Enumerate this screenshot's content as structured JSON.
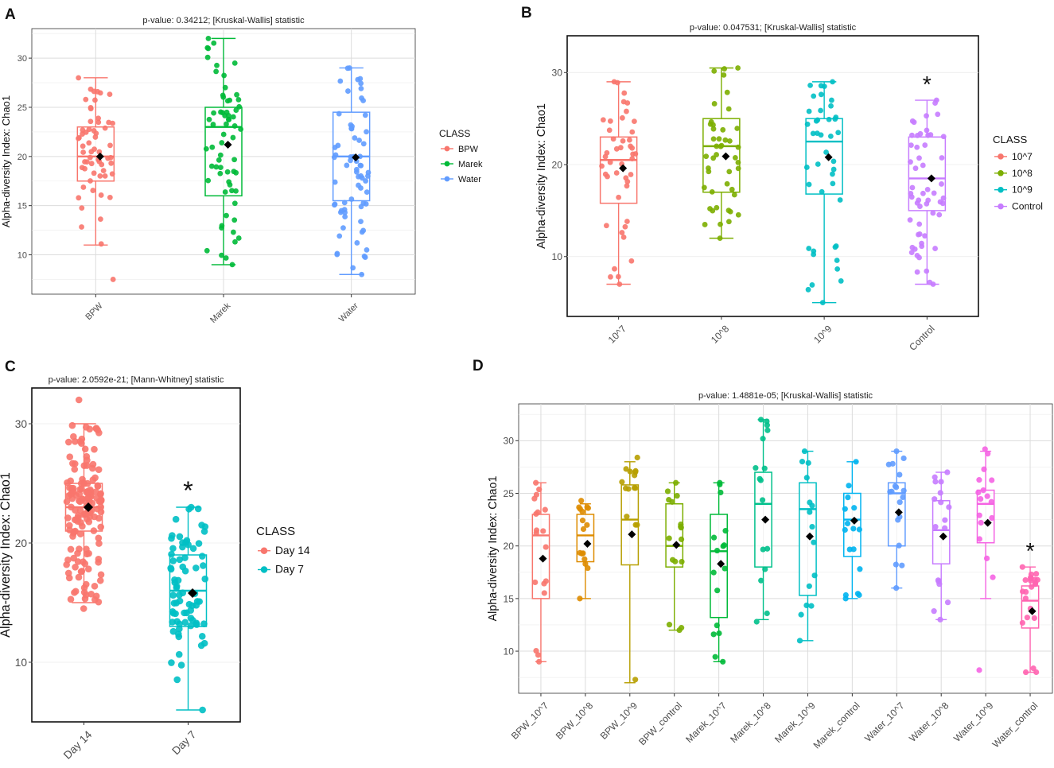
{
  "panels": [
    {
      "id": "A",
      "label": "A",
      "title": "p-value: 0.34212; [Kruskal-Wallis] statistic",
      "ylabel": "Alpha-diversity Index: Chao1",
      "ylim": [
        6,
        33
      ],
      "yticks": [
        10,
        15,
        20,
        25,
        30
      ],
      "legend_title": "CLASS",
      "font_scale": 1,
      "groups": [
        {
          "name": "BPW",
          "color": "#F8766D",
          "q1": 17.5,
          "median": 20,
          "q3": 23,
          "lw": 11,
          "uw": 28,
          "mean": 20,
          "min": 7.5,
          "max": 28,
          "n": 60
        },
        {
          "name": "Marek",
          "color": "#00BA38",
          "q1": 16,
          "median": 23,
          "q3": 25,
          "lw": 9,
          "uw": 32,
          "mean": 21.2,
          "min": 9,
          "max": 32,
          "n": 65
        },
        {
          "name": "Water",
          "color": "#619CFF",
          "q1": 15.5,
          "median": 20,
          "q3": 24.5,
          "lw": 8,
          "uw": 29,
          "mean": 19.9,
          "min": 8,
          "max": 29,
          "n": 70
        }
      ],
      "annotations": []
    },
    {
      "id": "B",
      "label": "B",
      "title": "p-value: 0.047531; [Kruskal-Wallis] statistic",
      "ylabel": "Alpha-diversity Index: Chao1",
      "ylim": [
        3.5,
        34
      ],
      "yticks": [
        10,
        20,
        30
      ],
      "legend_title": "CLASS",
      "font_scale": 1.1,
      "groups": [
        {
          "name": "10^7",
          "color": "#F8766D",
          "q1": 15.8,
          "median": 20.5,
          "q3": 23,
          "lw": 7,
          "uw": 29,
          "mean": 19.6,
          "min": 7,
          "max": 29,
          "n": 45
        },
        {
          "name": "10^8",
          "color": "#7CAE00",
          "q1": 17,
          "median": 22,
          "q3": 25,
          "lw": 12,
          "uw": 30.5,
          "mean": 20.9,
          "min": 12,
          "max": 30.5,
          "n": 45
        },
        {
          "name": "10^9",
          "color": "#00BFC4",
          "q1": 16.8,
          "median": 22.5,
          "q3": 25,
          "lw": 5,
          "uw": 29,
          "mean": 20.8,
          "min": 5,
          "max": 29,
          "n": 42
        },
        {
          "name": "Control",
          "color": "#C77CFF",
          "q1": 15,
          "median": 18.5,
          "q3": 23,
          "lw": 7,
          "uw": 27,
          "mean": 18.5,
          "min": 7,
          "max": 27,
          "n": 55
        }
      ],
      "annotations": [
        {
          "group": 3,
          "text": "*"
        }
      ]
    },
    {
      "id": "C",
      "label": "C",
      "title": "p-value: 2.0592e-21; [Mann-Whitney] statistic",
      "ylabel": "Alpha-diversity Index: Chao1",
      "ylim": [
        5,
        33
      ],
      "yticks": [
        10,
        20,
        30
      ],
      "legend_title": "CLASS",
      "font_scale": 1.25,
      "groups": [
        {
          "name": "Day 14",
          "color": "#F8766D",
          "q1": 21,
          "median": 23,
          "q3": 25,
          "lw": 15,
          "uw": 30,
          "mean": 23,
          "min": 14.5,
          "max": 32,
          "n": 150
        },
        {
          "name": "Day 7",
          "color": "#00BFC4",
          "q1": 13,
          "median": 16,
          "q3": 19,
          "lw": 6,
          "uw": 23,
          "mean": 15.8,
          "min": 6,
          "max": 23,
          "n": 75
        }
      ],
      "annotations": [
        {
          "group": 1,
          "text": "*"
        }
      ]
    },
    {
      "id": "D",
      "label": "D",
      "title": "p-value: 1.4881e-05; [Kruskal-Wallis] statistic",
      "ylabel": "Alpha-diversity Index: Chao1",
      "ylim": [
        6,
        33.5
      ],
      "yticks": [
        10,
        15,
        20,
        25,
        30
      ],
      "legend_title": "",
      "font_scale": 1.1,
      "groups": [
        {
          "name": "BPW_10^7",
          "color": "#F8766D",
          "q1": 15,
          "median": 21,
          "q3": 23,
          "lw": 9,
          "uw": 26,
          "mean": 18.8,
          "min": 9,
          "max": 26,
          "n": 18
        },
        {
          "name": "BPW_10^8",
          "color": "#DE8C00",
          "q1": 18.5,
          "median": 21,
          "q3": 23,
          "lw": 15,
          "uw": 24,
          "mean": 20.2,
          "min": 15,
          "max": 24.3,
          "n": 16
        },
        {
          "name": "BPW_10^9",
          "color": "#B79F00",
          "q1": 18.2,
          "median": 22.5,
          "q3": 25.8,
          "lw": 7,
          "uw": 28,
          "mean": 21.1,
          "min": 7.3,
          "max": 28.4,
          "n": 15
        },
        {
          "name": "BPW_control",
          "color": "#7CAE00",
          "q1": 18,
          "median": 20,
          "q3": 24,
          "lw": 12,
          "uw": 26,
          "mean": 20.1,
          "min": 12,
          "max": 26,
          "n": 16
        },
        {
          "name": "Marek_10^7",
          "color": "#00BA38",
          "q1": 13.2,
          "median": 19.5,
          "q3": 23,
          "lw": 9,
          "uw": 26,
          "mean": 18.3,
          "min": 9,
          "max": 26,
          "n": 16
        },
        {
          "name": "Marek_10^8",
          "color": "#00C08B",
          "q1": 18,
          "median": 24,
          "q3": 27,
          "lw": 13,
          "uw": 32,
          "mean": 22.5,
          "min": 12.8,
          "max": 32,
          "n": 16
        },
        {
          "name": "Marek_10^9",
          "color": "#00BFC4",
          "q1": 15.3,
          "median": 23.5,
          "q3": 26,
          "lw": 11,
          "uw": 29,
          "mean": 20.9,
          "min": 11,
          "max": 29,
          "n": 15
        },
        {
          "name": "Marek_control",
          "color": "#00B4F0",
          "q1": 19,
          "median": 22.5,
          "q3": 25,
          "lw": 15,
          "uw": 28,
          "mean": 22.4,
          "min": 15,
          "max": 28,
          "n": 16
        },
        {
          "name": "Water_10^7",
          "color": "#619CFF",
          "q1": 20,
          "median": 25,
          "q3": 26,
          "lw": 16,
          "uw": 29,
          "mean": 23.2,
          "min": 16,
          "max": 29,
          "n": 18
        },
        {
          "name": "Water_10^8",
          "color": "#C77CFF",
          "q1": 18.3,
          "median": 21.5,
          "q3": 24.3,
          "lw": 13,
          "uw": 27,
          "mean": 20.9,
          "min": 13,
          "max": 27,
          "n": 17
        },
        {
          "name": "Water_10^9",
          "color": "#F564E3",
          "q1": 20.3,
          "median": 24,
          "q3": 25.3,
          "lw": 15,
          "uw": 29,
          "mean": 22.2,
          "min": 8.2,
          "max": 29.2,
          "n": 17
        },
        {
          "name": "Water_control",
          "color": "#FF64B0",
          "q1": 12.2,
          "median": 14.8,
          "q3": 16.2,
          "lw": 8,
          "uw": 18,
          "mean": 13.8,
          "min": 8,
          "max": 18,
          "n": 22
        }
      ],
      "annotations": [
        {
          "group": 11,
          "text": "*"
        }
      ]
    }
  ],
  "chart_data": [
    {
      "type": "box",
      "title": "p-value: 0.34212; [Kruskal-Wallis] statistic",
      "ylabel": "Alpha-diversity Index: Chao1",
      "categories": [
        "BPW",
        "Marek",
        "Water"
      ],
      "median": [
        20,
        23,
        20
      ],
      "q1": [
        17.5,
        16,
        15.5
      ],
      "q3": [
        23,
        25,
        24.5
      ],
      "whisker_low": [
        11,
        9,
        8
      ],
      "whisker_high": [
        28,
        32,
        29
      ],
      "mean": [
        20,
        21.2,
        19.9
      ],
      "legend": [
        "BPW",
        "Marek",
        "Water"
      ]
    },
    {
      "type": "box",
      "title": "p-value: 0.047531; [Kruskal-Wallis] statistic",
      "ylabel": "Alpha-diversity Index: Chao1",
      "categories": [
        "10^7",
        "10^8",
        "10^9",
        "Control"
      ],
      "median": [
        20.5,
        22,
        22.5,
        18.5
      ],
      "q1": [
        15.8,
        17,
        16.8,
        15
      ],
      "q3": [
        23,
        25,
        25,
        23
      ],
      "whisker_low": [
        7,
        12,
        5,
        7
      ],
      "whisker_high": [
        29,
        30.5,
        29,
        27
      ],
      "mean": [
        19.6,
        20.9,
        20.8,
        18.5
      ],
      "legend": [
        "10^7",
        "10^8",
        "10^9",
        "Control"
      ]
    },
    {
      "type": "box",
      "title": "p-value: 2.0592e-21; [Mann-Whitney] statistic",
      "ylabel": "Alpha-diversity Index: Chao1",
      "categories": [
        "Day 14",
        "Day 7"
      ],
      "median": [
        23,
        16
      ],
      "q1": [
        21,
        13
      ],
      "q3": [
        25,
        19
      ],
      "whisker_low": [
        15,
        6
      ],
      "whisker_high": [
        30,
        23
      ],
      "mean": [
        23,
        15.8
      ],
      "legend": [
        "Day 14",
        "Day 7"
      ]
    },
    {
      "type": "box",
      "title": "p-value: 1.4881e-05; [Kruskal-Wallis] statistic",
      "ylabel": "Alpha-diversity Index: Chao1",
      "categories": [
        "BPW_10^7",
        "BPW_10^8",
        "BPW_10^9",
        "BPW_control",
        "Marek_10^7",
        "Marek_10^8",
        "Marek_10^9",
        "Marek_control",
        "Water_10^7",
        "Water_10^8",
        "Water_10^9",
        "Water_control"
      ],
      "median": [
        21,
        21,
        22.5,
        20,
        19.5,
        24,
        23.5,
        22.5,
        25,
        21.5,
        24,
        14.8
      ],
      "q1": [
        15,
        18.5,
        18.2,
        18,
        13.2,
        18,
        15.3,
        19,
        20,
        18.3,
        20.3,
        12.2
      ],
      "q3": [
        23,
        23,
        25.8,
        24,
        23,
        27,
        26,
        25,
        26,
        24.3,
        25.3,
        16.2
      ],
      "whisker_low": [
        9,
        15,
        7,
        12,
        9,
        13,
        11,
        15,
        16,
        13,
        15,
        8
      ],
      "whisker_high": [
        26,
        24,
        28,
        26,
        26,
        32,
        29,
        28,
        29,
        27,
        29,
        18
      ],
      "mean": [
        18.8,
        20.2,
        21.1,
        20.1,
        18.3,
        22.5,
        20.9,
        22.4,
        23.2,
        20.9,
        22.2,
        13.8
      ]
    }
  ]
}
